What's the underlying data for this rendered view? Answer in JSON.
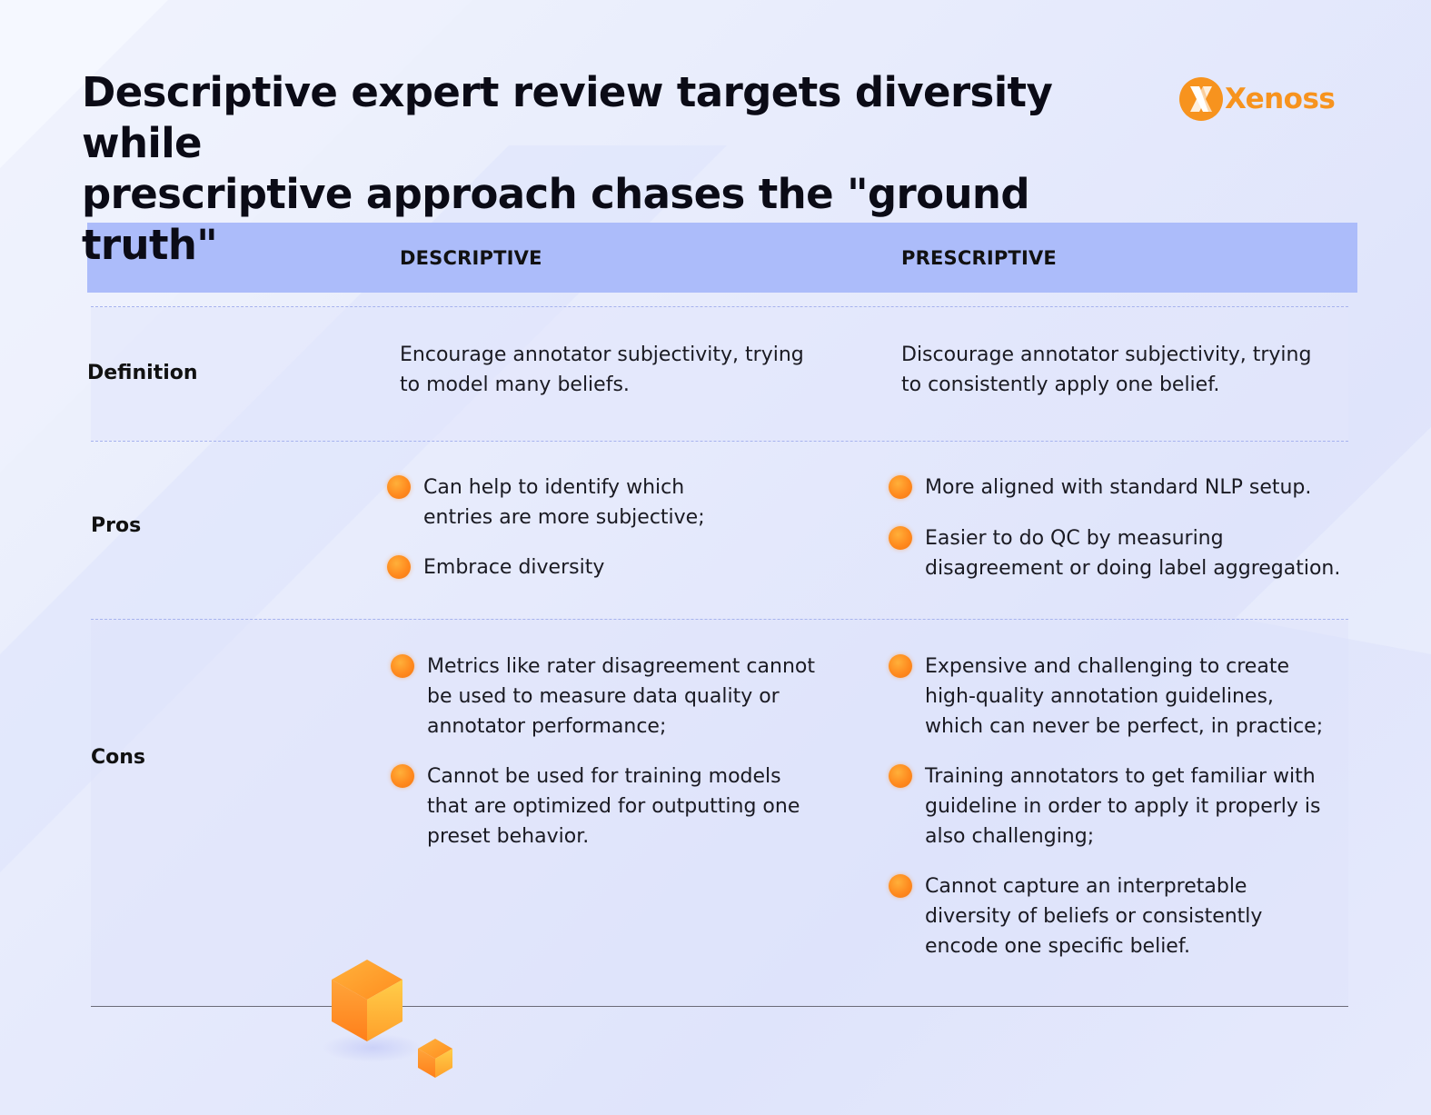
{
  "title": {
    "line1": "Descriptive expert review targets diversity while",
    "line2": "prescriptive approach chases the \"ground truth\""
  },
  "brand": {
    "name": "Xenoss",
    "mark_letter": "X",
    "color": "#f7931e"
  },
  "table": {
    "headers": {
      "descriptive": "DESCRIPTIVE",
      "prescriptive": "PRESCRIPTIVE"
    },
    "rows": {
      "definition": {
        "label": "Definition",
        "descriptive": [
          "Encourage annotator subjectivity, trying",
          "to model many beliefs."
        ],
        "prescriptive": [
          "Discourage annotator subjectivity, trying",
          "to consistently apply one belief."
        ]
      },
      "pros": {
        "label": "Pros",
        "descriptive": [
          [
            "Can help to identify which",
            "entries are more subjective;"
          ],
          [
            "Embrace diversity"
          ]
        ],
        "prescriptive": [
          [
            "More aligned with standard NLP setup."
          ],
          [
            "Easier to do QC by measuring",
            "disagreement or doing label aggregation."
          ]
        ]
      },
      "cons": {
        "label": "Cons",
        "descriptive": [
          [
            "Metrics like rater disagreement cannot",
            "be used to measure data quality or",
            "annotator performance;"
          ],
          [
            "Cannot be used for training models",
            "that are optimized for outputting one",
            "preset behavior."
          ]
        ],
        "prescriptive": [
          [
            "Expensive and challenging to create",
            "high-quality annotation guidelines,",
            "which can never be perfect, in practice;"
          ],
          [
            "Training annotators to get familiar with",
            "guideline in order to apply it properly is",
            "also challenging;"
          ],
          [
            "Cannot capture an interpretable",
            "diversity of beliefs or consistently",
            "encode one specific belief."
          ]
        ]
      }
    }
  },
  "colors": {
    "header_band": "#acbcfa",
    "bullet": "#ff8a1e",
    "title": "#0b0b16"
  }
}
